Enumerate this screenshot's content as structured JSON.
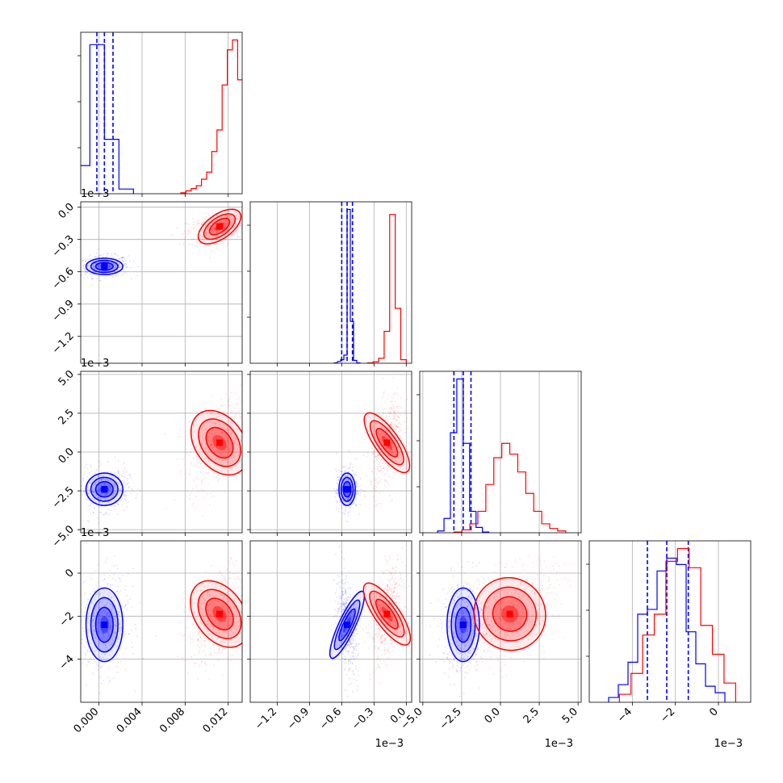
{
  "chart_data": {
    "type": "scatter",
    "subtype": "corner-plot",
    "grid": true,
    "legend": "none",
    "colors": {
      "series_a": "#0000ff",
      "series_b": "#ff0000",
      "axis": "#000000",
      "grid": "#b0b0b0"
    },
    "series": [
      {
        "color": "#0000ff",
        "means": [
          0.0005,
          -0.00055,
          -0.0024,
          -0.0024
        ],
        "stds": [
          0.0009,
          4e-05,
          0.00055,
          0.0009
        ],
        "quantiles": [
          [
            -0.0002,
            0.0005,
            0.0013
          ],
          [
            -0.0006,
            -0.00055,
            -0.0005
          ],
          [
            -0.003,
            -0.0024,
            -0.0019
          ],
          [
            -0.0033,
            -0.0024,
            -0.0014
          ]
        ],
        "hists": [
          [
            6.0,
            31.8,
            11.6,
            1.0
          ],
          [
            0.1,
            0.5,
            1.0,
            2.3,
            43.4,
            11.8,
            0.8,
            0.1
          ],
          [
            0.5,
            4.0,
            28.0,
            43.0,
            25.0,
            6.0,
            1.5,
            0.2
          ],
          [
            0.3,
            1.1,
            2.5,
            5.5,
            5.8,
            8.2,
            9.0,
            8.6,
            4.4,
            2.4,
            1.0,
            0.6
          ]
        ]
      },
      {
        "color": "#ff0000",
        "means": [
          0.0112,
          -0.00018,
          0.0006,
          -0.0019
        ],
        "stds": [
          0.0012,
          6e-05,
          0.0012,
          0.0009
        ],
        "quantiles": [],
        "hists": [
          [
            0.2,
            0.6,
            1.1,
            1.7,
            3.1,
            4.6,
            9.0,
            13.6,
            23.2,
            30.7,
            32.8,
            24.3,
            9.6,
            2.6,
            0.5
          ],
          [
            0.1,
            0.4,
            1.4,
            9.0,
            42.0,
            15.5,
            1.0
          ],
          [
            0.2,
            0.8,
            2.5,
            6.0,
            13.5,
            21.0,
            25.0,
            22.0,
            17.0,
            11.0,
            6.0,
            2.5,
            1.2,
            0.5
          ],
          [
            0.5,
            1.8,
            4.2,
            5.5,
            8.8,
            9.6,
            8.4,
            4.8,
            3.0,
            1.2
          ]
        ]
      }
    ],
    "axes": [
      {
        "xlim": [
          -0.0017,
          0.0133
        ],
        "ticks": [
          0.0,
          0.004,
          0.008,
          0.012
        ],
        "tick_labels": [
          "0.000",
          "0.004",
          "0.008",
          "0.012"
        ],
        "offset_label": ""
      },
      {
        "xlim": [
          -0.00145,
          5e-05
        ],
        "ticks": [
          -0.0012,
          -0.0009,
          -0.0006,
          -0.0003,
          0.0
        ],
        "tick_labels": [
          "−1.2",
          "−0.9",
          "−0.6",
          "−0.3",
          "0.0"
        ],
        "offset_label": "1e−3"
      },
      {
        "xlim": [
          -0.0052,
          0.0052
        ],
        "ticks": [
          -0.005,
          -0.0025,
          0.0,
          0.0025,
          0.005
        ],
        "tick_labels": [
          "−5.0",
          "−2.5",
          "0.0",
          "2.5",
          "5.0"
        ],
        "offset_label": "1e−3"
      },
      {
        "xlim": [
          -0.006,
          0.0015
        ],
        "ticks": [
          -0.004,
          -0.002,
          0.0
        ],
        "tick_labels": [
          "−4",
          "−2",
          "0"
        ],
        "offset_label": "1e−3"
      }
    ]
  }
}
